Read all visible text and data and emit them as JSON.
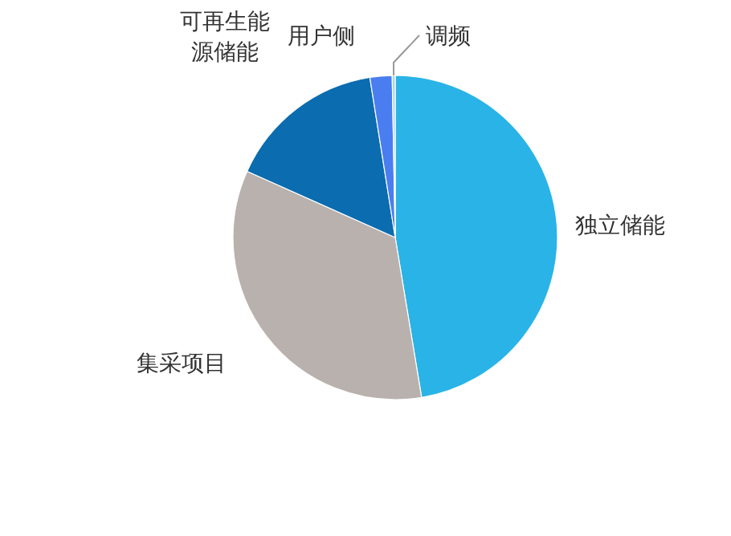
{
  "chart_data": {
    "type": "pie",
    "categories": [
      "独立储能",
      "集采项目",
      "可再生能源储能",
      "用户侧",
      "调频"
    ],
    "values": [
      47.4,
      34.3,
      15.8,
      2.2,
      0.3
    ],
    "colors": [
      "#2ab3e6",
      "#b9b1ae",
      "#0b6cb0",
      "#4a7df0",
      "#a8d8f0"
    ],
    "legend": false
  }
}
